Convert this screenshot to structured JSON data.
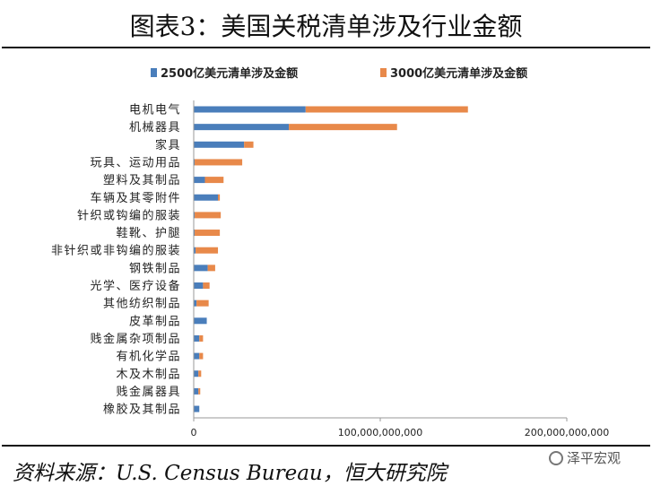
{
  "title": "图表3：美国关税清单涉及行业金额",
  "source": "资料来源：U.S.  Census  Bureau，恒大研究院",
  "watermark": "泽平宏观",
  "colors": {
    "series_2500": "#4a7ebb",
    "series_3000": "#e8894a",
    "axis": "#999999",
    "text": "#222222"
  },
  "chart_data": {
    "type": "bar",
    "orientation": "horizontal",
    "stacked": true,
    "legend_position": "top",
    "grid": false,
    "categories": [
      "电机电气",
      "机械器具",
      "家具",
      "玩具、运动用品",
      "塑料及其制品",
      "车辆及其零附件",
      "针织或钩编的服装",
      "鞋靴、护腿",
      "非针织或非钩编的服装",
      "钢铁制品",
      "光学、医疗设备",
      "其他纺织制品",
      "皮革制品",
      "贱金属杂项制品",
      "有机化学品",
      "木及木制品",
      "贱金属器具",
      "橡胶及其制品"
    ],
    "series": [
      {
        "name": "2500亿美元清单涉及金额",
        "values": [
          60000000000,
          51000000000,
          27000000000,
          500000000,
          6000000000,
          13000000000,
          500000000,
          500000000,
          1000000000,
          7500000000,
          5000000000,
          1500000000,
          7000000000,
          3000000000,
          3000000000,
          2500000000,
          2500000000,
          3000000000
        ]
      },
      {
        "name": "3000亿美元清单涉及金额",
        "values": [
          87000000000,
          58000000000,
          5000000000,
          25500000000,
          10000000000,
          1000000000,
          14000000000,
          13500000000,
          12000000000,
          4000000000,
          3500000000,
          6500000000,
          0,
          2000000000,
          2000000000,
          1500000000,
          1000000000,
          0
        ]
      }
    ],
    "xlim": [
      0,
      200000000000
    ],
    "xticks": [
      0,
      100000000000,
      200000000000
    ],
    "xtick_labels": [
      "0",
      "100,000,000,000",
      "200,000,000,000"
    ]
  }
}
